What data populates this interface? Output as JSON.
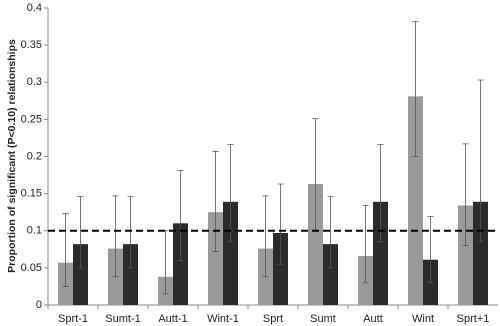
{
  "chart_data": {
    "type": "bar",
    "y_label": "Proportion of significant (P<0.10) relationships",
    "categories": [
      "Sprt-1",
      "Sumt-1",
      "Autt-1",
      "Wint-1",
      "Sprt",
      "Sumt",
      "Autt",
      "Wint",
      "Sprt+1"
    ],
    "series": [
      {
        "color": "#9a9a9a",
        "values": [
          0.057,
          0.076,
          0.038,
          0.125,
          0.076,
          0.163,
          0.066,
          0.281,
          0.134
        ],
        "lower": [
          0.025,
          0.038,
          0.015,
          0.072,
          0.038,
          0.1,
          0.03,
          0.2,
          0.08
        ],
        "upper": [
          0.123,
          0.147,
          0.1,
          0.207,
          0.147,
          0.251,
          0.134,
          0.382,
          0.217
        ]
      },
      {
        "color": "#2b2b2b",
        "values": [
          0.082,
          0.082,
          0.11,
          0.139,
          0.097,
          0.082,
          0.139,
          0.061,
          0.139
        ],
        "lower": [
          0.05,
          0.05,
          0.06,
          0.085,
          0.055,
          0.05,
          0.085,
          0.03,
          0.085
        ],
        "upper": [
          0.146,
          0.146,
          0.181,
          0.216,
          0.163,
          0.146,
          0.216,
          0.119,
          0.303
        ]
      }
    ],
    "reference_line": 0.1,
    "ylim": [
      0,
      0.4
    ],
    "yticks": [
      0,
      0.05,
      0.1,
      0.15,
      0.2,
      0.25,
      0.3,
      0.35,
      0.4
    ],
    "grid": false
  }
}
